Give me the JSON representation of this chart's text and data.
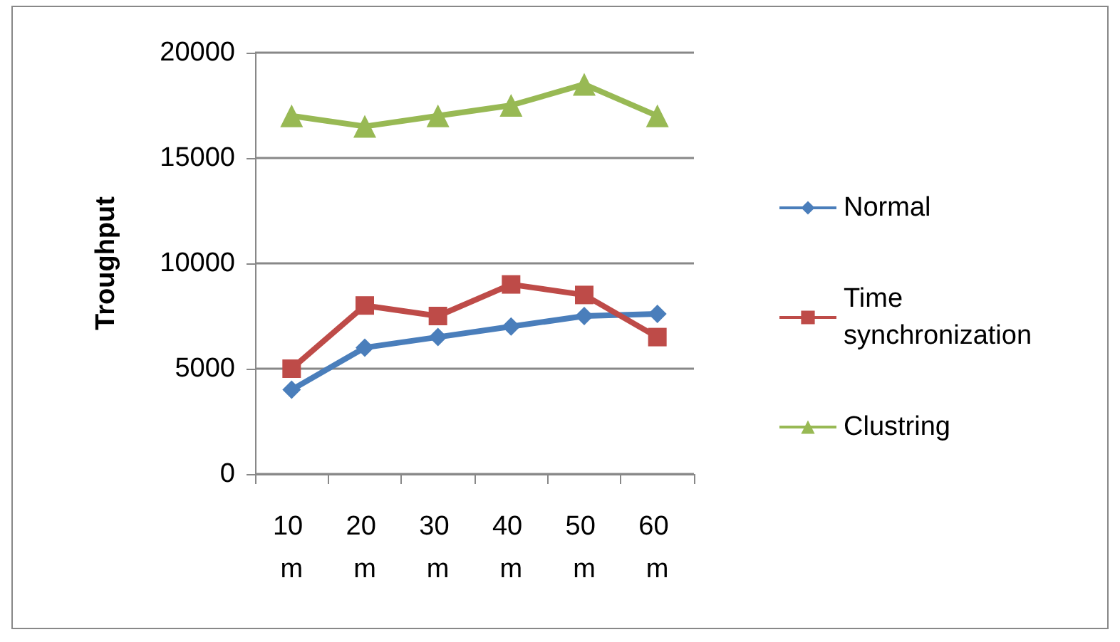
{
  "chart_data": {
    "type": "line",
    "ylabel": "Troughput",
    "categories": [
      "10 m",
      "20 m",
      "30 m",
      "40 m",
      "50 m",
      "60 m"
    ],
    "series": [
      {
        "name": "Normal",
        "color": "#4a7ebb",
        "marker": "diamond",
        "values": [
          4000,
          6000,
          6500,
          7000,
          7500,
          7600
        ]
      },
      {
        "name": "Time synchronization",
        "color": "#be4b48",
        "marker": "square",
        "values": [
          5000,
          8000,
          7500,
          9000,
          8500,
          6500
        ]
      },
      {
        "name": "Clustring",
        "color": "#98b954",
        "marker": "triangle",
        "values": [
          17000,
          16500,
          17000,
          17500,
          18500,
          17000
        ]
      }
    ],
    "ylim": [
      0,
      20000
    ],
    "yticks": [
      0,
      5000,
      10000,
      15000,
      20000
    ],
    "grid": "y",
    "legend": "right"
  }
}
